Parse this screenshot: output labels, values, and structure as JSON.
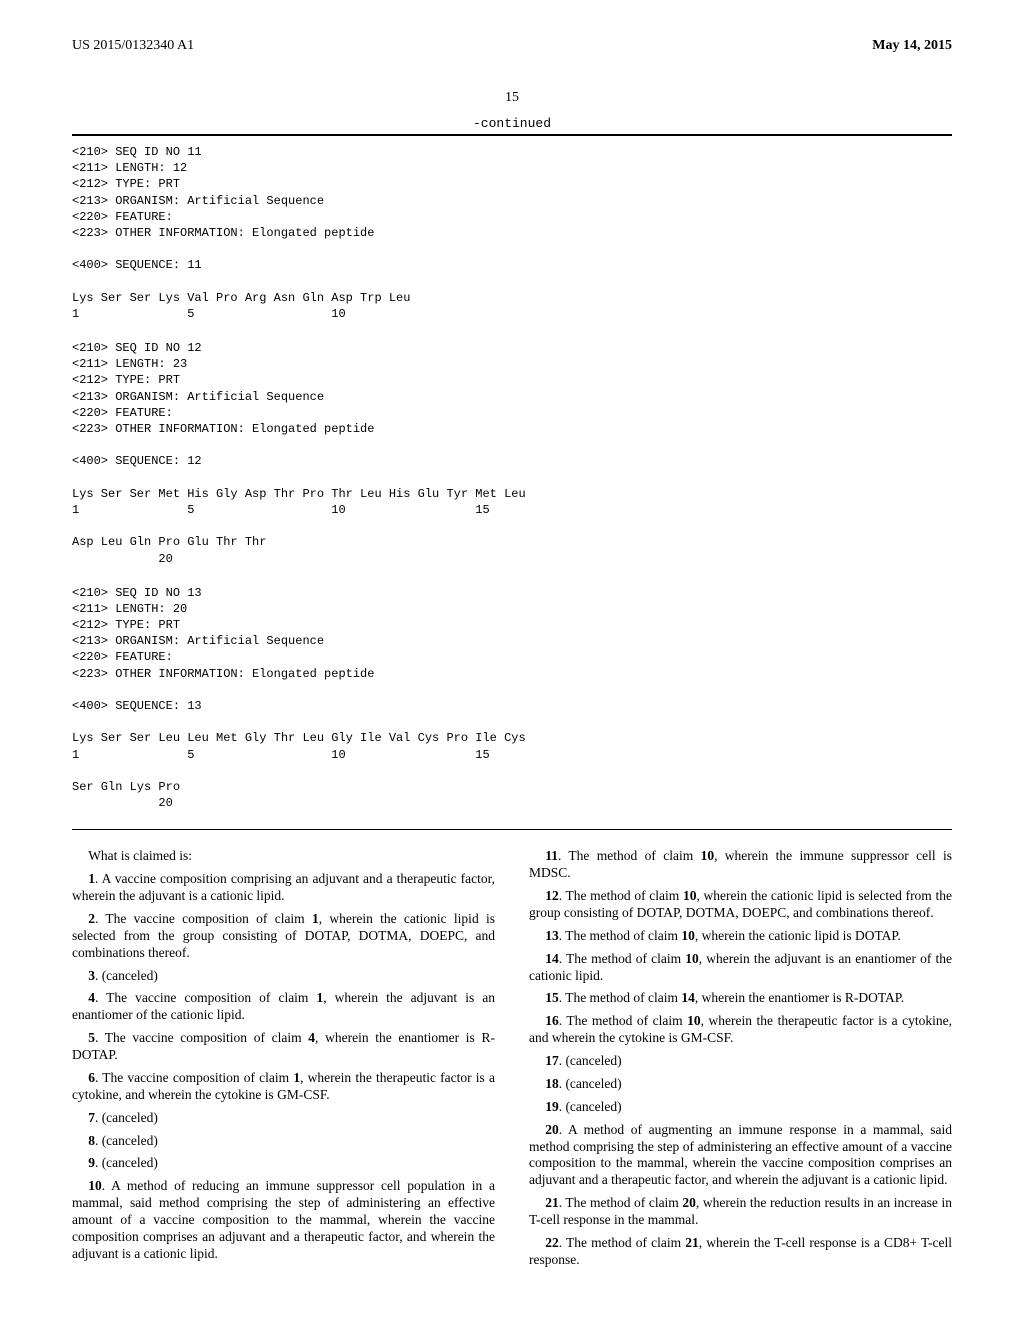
{
  "header": {
    "docnum": "US 2015/0132340 A1",
    "date": "May 14, 2015"
  },
  "pagenum": "15",
  "continued": "-continued",
  "seqs": [
    {
      "lines": [
        "<210> SEQ ID NO 11",
        "<211> LENGTH: 12",
        "<212> TYPE: PRT",
        "<213> ORGANISM: Artificial Sequence",
        "<220> FEATURE:",
        "<223> OTHER INFORMATION: Elongated peptide",
        "",
        "<400> SEQUENCE: 11",
        "",
        "Lys Ser Ser Lys Val Pro Arg Asn Gln Asp Trp Leu",
        "1               5                   10"
      ]
    },
    {
      "lines": [
        "<210> SEQ ID NO 12",
        "<211> LENGTH: 23",
        "<212> TYPE: PRT",
        "<213> ORGANISM: Artificial Sequence",
        "<220> FEATURE:",
        "<223> OTHER INFORMATION: Elongated peptide",
        "",
        "<400> SEQUENCE: 12",
        "",
        "Lys Ser Ser Met His Gly Asp Thr Pro Thr Leu His Glu Tyr Met Leu",
        "1               5                   10                  15",
        "",
        "Asp Leu Gln Pro Glu Thr Thr",
        "            20"
      ]
    },
    {
      "lines": [
        "<210> SEQ ID NO 13",
        "<211> LENGTH: 20",
        "<212> TYPE: PRT",
        "<213> ORGANISM: Artificial Sequence",
        "<220> FEATURE:",
        "<223> OTHER INFORMATION: Elongated peptide",
        "",
        "<400> SEQUENCE: 13",
        "",
        "Lys Ser Ser Leu Leu Met Gly Thr Leu Gly Ile Val Cys Pro Ile Cys",
        "1               5                   10                  15",
        "",
        "Ser Gln Lys Pro",
        "            20"
      ]
    }
  ],
  "claims": {
    "lead": "What is claimed is:",
    "c1": "1. A vaccine composition comprising an adjuvant and a therapeutic factor, wherein the adjuvant is a cationic lipid.",
    "c2": "2. The vaccine composition of claim 1, wherein the cationic lipid is selected from the group consisting of DOTAP, DOTMA, DOEPC, and combinations thereof.",
    "c3": "3. (canceled)",
    "c4": "4. The vaccine composition of claim 1, wherein the adjuvant is an enantiomer of the cationic lipid.",
    "c5": "5. The vaccine composition of claim 4, wherein the enantiomer is R-DOTAP.",
    "c6": "6. The vaccine composition of claim 1, wherein the therapeutic factor is a cytokine, and wherein the cytokine is GM-CSF.",
    "c7": "7. (canceled)",
    "c8": "8. (canceled)",
    "c9": "9. (canceled)",
    "c10": "10. A method of reducing an immune suppressor cell population in a mammal, said method comprising the step of administering an effective amount of a vaccine composition to the mammal, wherein the vaccine composition comprises an adjuvant and a therapeutic factor, and wherein the adjuvant is a cationic lipid.",
    "c11": "11. The method of claim 10, wherein the immune suppressor cell is MDSC.",
    "c12": "12. The method of claim 10, wherein the cationic lipid is selected from the group consisting of DOTAP, DOTMA, DOEPC, and combinations thereof.",
    "c13": "13. The method of claim 10, wherein the cationic lipid is DOTAP.",
    "c14": "14. The method of claim 10, wherein the adjuvant is an enantiomer of the cationic lipid.",
    "c15": "15. The method of claim 14, wherein the enantiomer is R-DOTAP.",
    "c16": "16. The method of claim 10, wherein the therapeutic factor is a cytokine, and wherein the cytokine is GM-CSF.",
    "c17": "17. (canceled)",
    "c18": "18. (canceled)",
    "c19": "19. (canceled)",
    "c20": "20. A method of augmenting an immune response in a mammal, said method comprising the step of administering an effective amount of a vaccine composition to the mammal, wherein the vaccine composition comprises an adjuvant and a therapeutic factor, and wherein the adjuvant is a cationic lipid.",
    "c21": "21. The method of claim 20, wherein the reduction results in an increase in T-cell response in the mammal.",
    "c22": "22. The method of claim 21, wherein the T-cell response is a CD8+ T-cell response."
  }
}
